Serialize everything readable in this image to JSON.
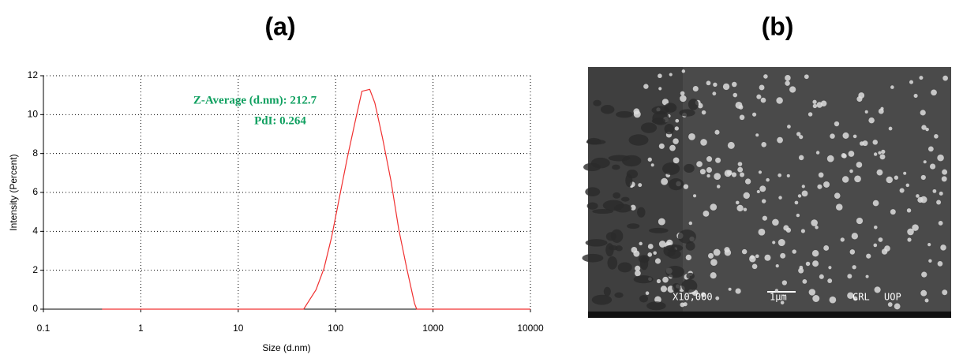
{
  "chart_data": {
    "type": "line",
    "title": "(a)",
    "x_label": "Size (d.nm)",
    "y_label": "Intensity (Percent)",
    "annotations": [
      "Z-Average (d.nm): 212.7",
      "PdI: 0.264"
    ],
    "x": [
      0.4,
      47,
      63,
      76,
      91,
      110,
      132,
      158,
      186,
      224,
      253,
      303,
      370,
      445,
      537,
      645,
      680,
      10000
    ],
    "values": [
      0,
      0,
      1,
      2.1,
      3.7,
      5.8,
      7.8,
      9.6,
      11.2,
      11.3,
      10.6,
      8.8,
      6.6,
      4.1,
      2.1,
      0.3,
      0,
      0
    ],
    "color": "#f03030",
    "xlim": [
      0.1,
      10000
    ],
    "xticks": [
      0.1,
      1,
      10,
      100,
      1000,
      10000
    ],
    "xscale": "log",
    "ylim": [
      0,
      12
    ],
    "yticks": [
      0,
      2,
      4,
      6,
      8,
      10,
      12
    ],
    "grid": true
  },
  "image": {
    "title": "(b)",
    "labels": [
      "X10,000",
      "1μm",
      "CRL",
      "UOP"
    ]
  }
}
